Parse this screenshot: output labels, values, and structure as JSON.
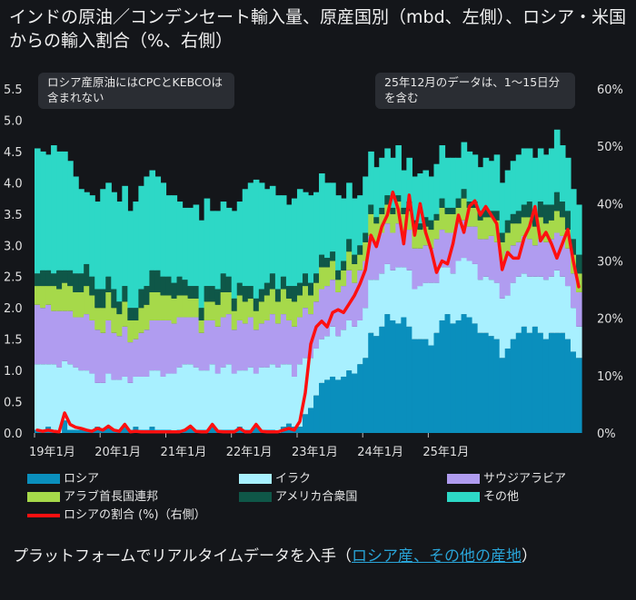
{
  "title": "インドの原油／コンデンセート輸入量、原産国別（mbd、左側）、ロシア・米国からの輸入割合（%、右側）",
  "notes": {
    "left": "ロシア産原油にはCPCとKEBCOは含まれない",
    "right": "25年12月のデータは、1〜15日分を含む"
  },
  "footer": {
    "prefix": "プラットフォームでリアルタイムデータを入手（",
    "link": "ロシア産、その他の産地",
    "suffix": "）"
  },
  "chart_data": {
    "type": "area",
    "x_ticks": [
      "19年1月",
      "20年1月",
      "21年1月",
      "22年1月",
      "23年1月",
      "24年1月",
      "25年1月"
    ],
    "y_left_ticks": [
      "0.0",
      "0.5",
      "1.0",
      "1.5",
      "2.0",
      "2.5",
      "3.0",
      "3.5",
      "4.0",
      "4.5",
      "5.0",
      "5.5"
    ],
    "y_right_ticks": [
      "0%",
      "10%",
      "20%",
      "30%",
      "40%",
      "50%",
      "60%"
    ],
    "ylim_left": [
      0,
      5.5
    ],
    "ylim_right": [
      0,
      60
    ],
    "start": "2019-01",
    "end": "2025-12",
    "colors": {
      "russia": "#0a8fbd",
      "iraq": "#a8f0ff",
      "saudi": "#b09cf0",
      "uae": "#a6d94a",
      "usa": "#0f5748",
      "other": "#2dd8c6",
      "share": "#ff1010"
    },
    "series": [
      {
        "key": "russia",
        "name": "ロシア",
        "values": [
          0.05,
          0.05,
          0.1,
          0.05,
          0.0,
          0.2,
          0.05,
          0.05,
          0.05,
          0.05,
          0.05,
          0.1,
          0.05,
          0.1,
          0.05,
          0.05,
          0.1,
          0.05,
          0.1,
          0.05,
          0.05,
          0.1,
          0.05,
          0.05,
          0.05,
          0.0,
          0.05,
          0.05,
          0.1,
          0.05,
          0.05,
          0.05,
          0.1,
          0.05,
          0.05,
          0.05,
          0.05,
          0.1,
          0.05,
          0.05,
          0.1,
          0.05,
          0.05,
          0.05,
          0.0,
          0.1,
          0.15,
          0.1,
          0.1,
          0.3,
          0.4,
          0.6,
          0.8,
          0.85,
          0.9,
          0.85,
          0.9,
          1.0,
          0.95,
          1.1,
          1.2,
          1.6,
          1.55,
          1.7,
          1.9,
          1.8,
          1.75,
          1.85,
          1.7,
          1.5,
          1.5,
          1.5,
          1.4,
          1.6,
          1.8,
          1.9,
          1.75,
          1.8,
          1.9,
          1.85,
          1.75,
          1.6,
          1.6,
          1.55,
          1.5,
          1.2,
          1.35,
          1.5,
          1.6,
          1.7,
          1.6,
          1.7,
          1.6,
          1.5,
          1.6,
          1.6,
          1.6,
          1.5,
          1.3,
          1.2
        ]
      },
      {
        "key": "iraq",
        "name": "イラク",
        "values": [
          1.05,
          1.05,
          1.0,
          1.05,
          1.05,
          0.95,
          1.05,
          1.0,
          0.95,
          0.95,
          0.9,
          0.7,
          0.75,
          0.85,
          0.8,
          0.8,
          0.8,
          0.75,
          0.8,
          0.85,
          0.85,
          0.9,
          0.95,
          0.85,
          0.9,
          0.95,
          1.0,
          1.05,
          1.0,
          1.0,
          0.95,
          0.95,
          1.0,
          0.9,
          1.0,
          1.05,
          0.9,
          0.9,
          0.95,
          1.0,
          0.85,
          1.0,
          1.0,
          1.05,
          1.05,
          1.0,
          0.95,
          0.8,
          1.0,
          0.9,
          0.8,
          0.75,
          0.7,
          0.7,
          0.8,
          0.7,
          0.75,
          0.8,
          0.75,
          0.7,
          0.8,
          0.85,
          0.9,
          0.85,
          0.8,
          0.8,
          0.9,
          0.8,
          0.9,
          0.8,
          0.85,
          0.9,
          1.0,
          0.8,
          0.85,
          0.75,
          0.8,
          0.95,
          0.9,
          0.9,
          0.95,
          0.85,
          0.9,
          0.9,
          0.9,
          0.95,
          0.85,
          0.9,
          0.9,
          0.85,
          0.9,
          0.8,
          0.9,
          0.95,
          0.9,
          1.0,
          0.9,
          0.85,
          0.7,
          0.5
        ]
      },
      {
        "key": "saudi",
        "name": "サウジアラビア",
        "values": [
          0.95,
          0.9,
          0.95,
          0.85,
          0.9,
          0.8,
          0.85,
          0.8,
          0.85,
          0.9,
          0.85,
          0.85,
          0.8,
          0.85,
          0.75,
          0.7,
          0.8,
          0.65,
          0.6,
          0.7,
          0.75,
          0.8,
          0.8,
          0.9,
          0.85,
          0.8,
          0.8,
          0.75,
          0.75,
          0.8,
          0.6,
          0.8,
          0.7,
          0.75,
          0.8,
          0.8,
          0.7,
          0.8,
          0.75,
          0.8,
          0.7,
          0.7,
          0.75,
          0.8,
          0.7,
          0.8,
          0.7,
          0.8,
          0.75,
          0.8,
          0.7,
          0.75,
          0.8,
          0.8,
          0.75,
          0.7,
          0.7,
          0.8,
          0.7,
          0.8,
          0.75,
          0.7,
          0.6,
          0.65,
          0.65,
          0.6,
          0.7,
          0.55,
          0.65,
          0.65,
          0.6,
          0.6,
          0.55,
          0.7,
          0.6,
          0.55,
          0.65,
          0.6,
          0.6,
          0.55,
          0.6,
          0.65,
          0.6,
          0.7,
          0.65,
          0.6,
          0.7,
          0.6,
          0.55,
          0.6,
          0.6,
          0.5,
          0.6,
          0.6,
          0.6,
          0.6,
          0.65,
          0.6,
          0.55,
          0.55
        ]
      },
      {
        "key": "uae",
        "name": "アラブ首長国連邦",
        "values": [
          0.3,
          0.35,
          0.3,
          0.4,
          0.35,
          0.45,
          0.4,
          0.4,
          0.4,
          0.45,
          0.4,
          0.35,
          0.4,
          0.45,
          0.4,
          0.35,
          0.4,
          0.35,
          0.3,
          0.4,
          0.4,
          0.45,
          0.45,
          0.4,
          0.4,
          0.4,
          0.35,
          0.35,
          0.3,
          0.3,
          0.2,
          0.3,
          0.3,
          0.35,
          0.4,
          0.35,
          0.3,
          0.4,
          0.35,
          0.3,
          0.3,
          0.35,
          0.4,
          0.4,
          0.35,
          0.4,
          0.35,
          0.4,
          0.35,
          0.35,
          0.3,
          0.3,
          0.35,
          0.3,
          0.3,
          0.2,
          0.25,
          0.3,
          0.3,
          0.25,
          0.3,
          0.35,
          0.3,
          0.3,
          0.3,
          0.3,
          0.35,
          0.3,
          0.3,
          0.35,
          0.3,
          0.3,
          0.3,
          0.3,
          0.35,
          0.3,
          0.3,
          0.25,
          0.35,
          0.3,
          0.3,
          0.3,
          0.35,
          0.3,
          0.35,
          0.3,
          0.3,
          0.35,
          0.3,
          0.3,
          0.35,
          0.3,
          0.35,
          0.3,
          0.3,
          0.35,
          0.3,
          0.3,
          0.3,
          0.3
        ]
      },
      {
        "key": "usa",
        "name": "アメリカ合衆国",
        "values": [
          0.2,
          0.25,
          0.25,
          0.2,
          0.3,
          0.2,
          0.25,
          0.3,
          0.3,
          0.35,
          0.3,
          0.3,
          0.3,
          0.25,
          0.3,
          0.2,
          0.25,
          0.2,
          0.2,
          0.3,
          0.3,
          0.35,
          0.35,
          0.3,
          0.3,
          0.25,
          0.3,
          0.25,
          0.2,
          0.2,
          0.2,
          0.25,
          0.25,
          0.25,
          0.3,
          0.25,
          0.2,
          0.2,
          0.25,
          0.2,
          0.2,
          0.2,
          0.2,
          0.25,
          0.2,
          0.2,
          0.2,
          0.25,
          0.2,
          0.2,
          0.2,
          0.15,
          0.2,
          0.15,
          0.15,
          0.15,
          0.15,
          0.2,
          0.15,
          0.15,
          0.15,
          0.15,
          0.1,
          0.1,
          0.15,
          0.1,
          0.1,
          0.1,
          0.15,
          0.1,
          0.1,
          0.15,
          0.15,
          0.1,
          0.15,
          0.1,
          0.1,
          0.15,
          0.15,
          0.1,
          0.1,
          0.15,
          0.15,
          0.1,
          0.15,
          0.15,
          0.2,
          0.15,
          0.2,
          0.2,
          0.25,
          0.2,
          0.25,
          0.3,
          0.25,
          0.3,
          0.25,
          0.3,
          0.25,
          0.3
        ]
      },
      {
        "key": "other",
        "name": "その他",
        "values": [
          2.0,
          1.9,
          1.85,
          2.05,
          1.9,
          1.9,
          1.75,
          1.55,
          1.35,
          1.15,
          1.3,
          1.4,
          1.6,
          1.5,
          1.55,
          1.6,
          1.6,
          1.55,
          1.7,
          1.65,
          1.75,
          1.6,
          1.5,
          1.5,
          1.3,
          1.4,
          1.2,
          1.15,
          1.25,
          1.3,
          1.4,
          1.4,
          1.2,
          1.25,
          1.15,
          1.1,
          1.4,
          1.3,
          1.55,
          1.65,
          1.9,
          1.7,
          1.5,
          1.4,
          1.5,
          1.3,
          1.3,
          1.4,
          1.5,
          1.3,
          1.4,
          1.3,
          1.3,
          1.2,
          1.1,
          1.2,
          1.0,
          0.9,
          0.9,
          0.8,
          0.9,
          0.85,
          0.8,
          0.8,
          0.75,
          0.8,
          0.8,
          0.6,
          0.7,
          0.7,
          0.8,
          0.75,
          0.7,
          0.8,
          0.85,
          0.8,
          0.8,
          0.65,
          0.75,
          0.8,
          0.75,
          0.7,
          0.8,
          0.8,
          0.9,
          0.8,
          0.8,
          0.85,
          0.9,
          0.9,
          0.85,
          0.9,
          0.85,
          0.8,
          0.9,
          1.0,
          0.9,
          0.85,
          0.8,
          0.8
        ]
      },
      {
        "key": "share",
        "name": "ロシアの割合 (%)（右側）",
        "axis": "right",
        "values": [
          0.5,
          0.3,
          0.5,
          0.3,
          0.2,
          3.5,
          1.5,
          1.0,
          0.8,
          0.5,
          0.3,
          0.8,
          0.5,
          1.2,
          0.5,
          0.3,
          1.5,
          0.2,
          0.3,
          0.2,
          0.2,
          0.2,
          0.2,
          0.2,
          0.2,
          0.2,
          0.2,
          0.5,
          1.2,
          0.3,
          0.2,
          0.2,
          1.5,
          0.3,
          0.2,
          0.2,
          0.2,
          0.8,
          0.2,
          0.2,
          1.5,
          0.3,
          0.2,
          0.2,
          0.2,
          0.5,
          0.8,
          0.5,
          2.0,
          7.0,
          15.5,
          18.5,
          19.5,
          18.5,
          21.0,
          21.5,
          21.0,
          22.5,
          24.0,
          26.0,
          28.5,
          34.5,
          32.5,
          36.0,
          38.0,
          42.0,
          39.0,
          33.0,
          41.5,
          34.5,
          40.0,
          35.0,
          32.0,
          28.0,
          30.0,
          29.5,
          33.0,
          38.0,
          35.0,
          39.5,
          40.5,
          38.0,
          39.5,
          38.0,
          36.5,
          28.5,
          31.5,
          30.5,
          30.5,
          34.0,
          36.0,
          39.5,
          33.5,
          35.0,
          33.0,
          30.5,
          33.0,
          35.5,
          30.0,
          25.5
        ]
      }
    ]
  }
}
